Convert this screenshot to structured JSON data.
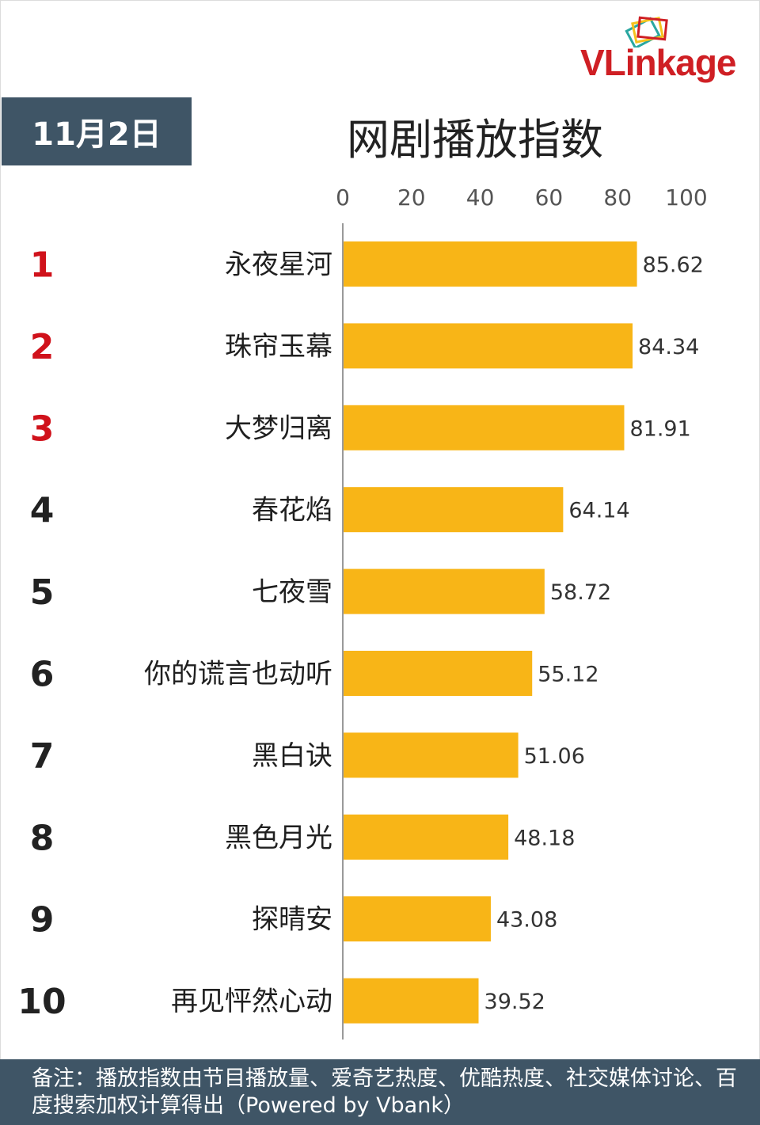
{
  "logo": {
    "text": "VLinkage",
    "colors": {
      "red": "#cf1f24",
      "teal": "#2aa7a1",
      "yellow": "#f6c21c"
    }
  },
  "header": {
    "date": "11月2日"
  },
  "footer": {
    "note": "备注：播放指数由节目播放量、爱奇艺热度、优酷热度、社交媒体讨论、百度搜索加权计算得出（Powered by Vbank）"
  },
  "colors": {
    "bar": "#f8b517",
    "badge": "#3f5566",
    "rank_top": "#d0121b",
    "rank_other": "#222222"
  },
  "chart_data": {
    "type": "bar",
    "orientation": "horizontal",
    "title": "网剧播放指数",
    "xlim": [
      0,
      100
    ],
    "xticks": [
      0,
      20,
      40,
      60,
      80,
      100
    ],
    "ranks": [
      "1",
      "2",
      "3",
      "4",
      "5",
      "6",
      "7",
      "8",
      "9",
      "10"
    ],
    "categories": [
      "永夜星河",
      "珠帘玉幕",
      "大梦归离",
      "春花焰",
      "七夜雪",
      "你的谎言也动听",
      "黑白诀",
      "黑色月光",
      "探晴安",
      "再见怦然心动"
    ],
    "values": [
      85.62,
      84.34,
      81.91,
      64.14,
      58.72,
      55.12,
      51.06,
      48.18,
      43.08,
      39.52
    ],
    "value_labels": [
      "85.62",
      "84.34",
      "81.91",
      "64.14",
      "58.72",
      "55.12",
      "51.06",
      "48.18",
      "43.08",
      "39.52"
    ],
    "grid": false,
    "legend": "none"
  }
}
